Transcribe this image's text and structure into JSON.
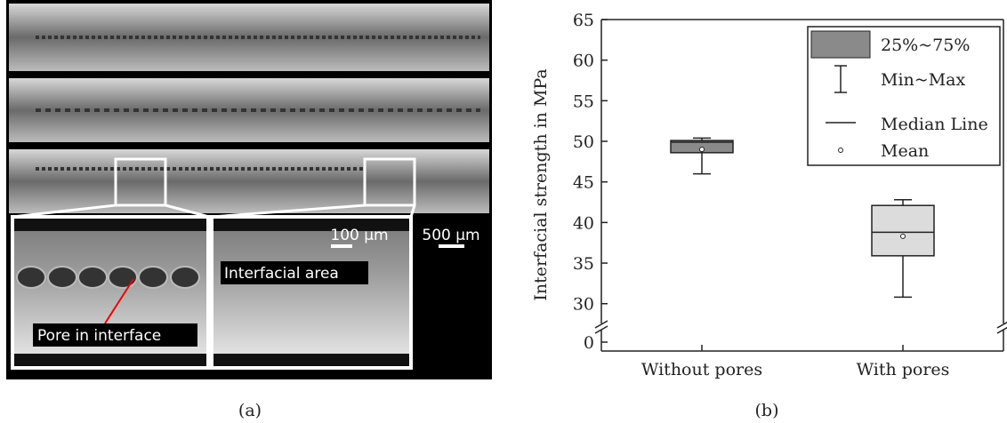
{
  "figure_a": {
    "scale_bars": [
      "100 µm",
      "500 µm"
    ],
    "labels": [
      "Interfacial area",
      "Pore in interface"
    ],
    "caption": "(a)"
  },
  "chart_data": {
    "type": "box",
    "caption": "(b)",
    "y_label": "Interfacial strength in MPa",
    "categories": [
      "Without pores",
      "With pores"
    ],
    "boxes": [
      {
        "min": 46,
        "q1": 48.6,
        "median": 49.9,
        "q3": 50.1,
        "max": 50.4,
        "mean": 49,
        "color": "#8a8a8a"
      },
      {
        "min": 30.8,
        "q1": 35.9,
        "median": 38.8,
        "q3": 42.1,
        "max": 42.8,
        "mean": 38.3,
        "color": "#dcdcdc"
      }
    ],
    "legend": [
      "25%~75%",
      "Min~Max",
      "Median Line",
      "Mean"
    ],
    "legend_position": "upper right",
    "ylim": [
      -1,
      65
    ],
    "y_break": [
      1,
      28
    ],
    "yticks": [
      0,
      30,
      35,
      40,
      45,
      50,
      55,
      60,
      65
    ]
  }
}
